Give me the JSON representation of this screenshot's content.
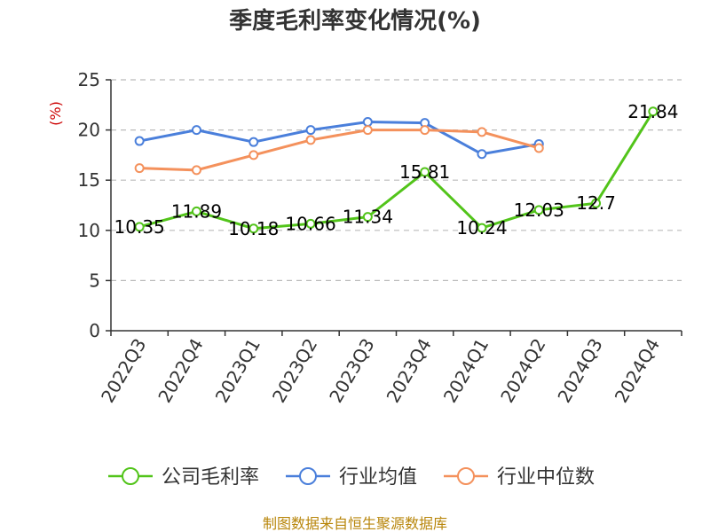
{
  "title": "季度毛利率变化情况(%)",
  "unit_label": "(%)",
  "footer": "制图数据来自恒生聚源数据库",
  "colors": {
    "unit": "#cc0000",
    "footer": "#b8860b",
    "axis": "#333333",
    "grid": "#bbbbbb"
  },
  "chart_data": {
    "type": "line",
    "title": "季度毛利率变化情况(%)",
    "ylabel": "(%)",
    "xlabel": "",
    "ylim": [
      0,
      25
    ],
    "yticks": [
      0,
      5,
      10,
      15,
      20,
      25
    ],
    "grid": true,
    "legend_position": "bottom",
    "categories": [
      "2022Q3",
      "2022Q4",
      "2023Q1",
      "2023Q2",
      "2023Q3",
      "2023Q4",
      "2024Q1",
      "2024Q2",
      "2024Q3",
      "2024Q4"
    ],
    "series": [
      {
        "name": "公司毛利率",
        "color": "#52c41a",
        "values": [
          10.35,
          11.89,
          10.18,
          10.66,
          11.34,
          15.81,
          10.24,
          12.03,
          12.7,
          21.84
        ],
        "labels": [
          "10.35",
          "11.89",
          "10.18",
          "10.66",
          "11.34",
          "15.81",
          "10.24",
          "12.03",
          "12.7",
          "21.84"
        ]
      },
      {
        "name": "行业均值",
        "color": "#4a7fdb",
        "values": [
          18.9,
          20.0,
          18.8,
          20.0,
          20.8,
          20.7,
          17.6,
          18.6,
          null,
          null
        ]
      },
      {
        "name": "行业中位数",
        "color": "#f4915c",
        "values": [
          16.2,
          16.0,
          17.5,
          19.0,
          20.0,
          20.0,
          19.8,
          18.2,
          null,
          null
        ]
      }
    ]
  }
}
